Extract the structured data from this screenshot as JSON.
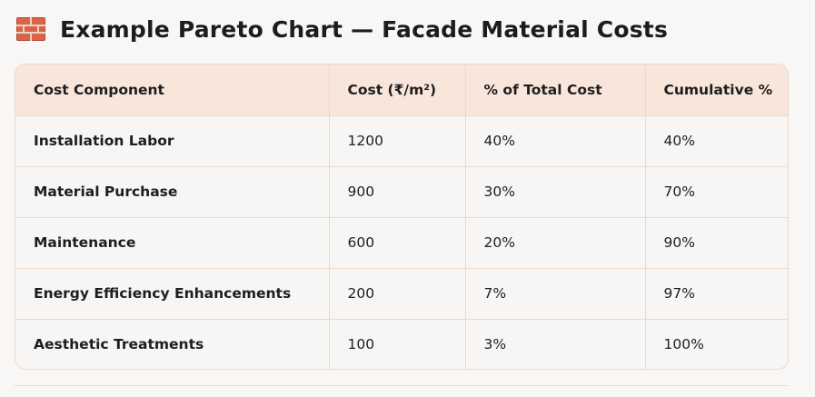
{
  "header": {
    "icon": "brick-icon",
    "title": "Example Pareto Chart — Facade Material Costs"
  },
  "colors": {
    "header_row_bg": "#f8e6db",
    "border": "#ead9cd",
    "page_bg": "#f9f7f5"
  },
  "table": {
    "columns": [
      "Cost Component",
      "Cost (₹/m²)",
      "% of Total Cost",
      "Cumulative %"
    ],
    "rows": [
      [
        "Installation Labor",
        "1200",
        "40%",
        "40%"
      ],
      [
        "Material Purchase",
        "900",
        "30%",
        "70%"
      ],
      [
        "Maintenance",
        "600",
        "20%",
        "90%"
      ],
      [
        "Energy Efficiency Enhancements",
        "200",
        "7%",
        "97%"
      ],
      [
        "Aesthetic Treatments",
        "100",
        "3%",
        "100%"
      ]
    ]
  }
}
